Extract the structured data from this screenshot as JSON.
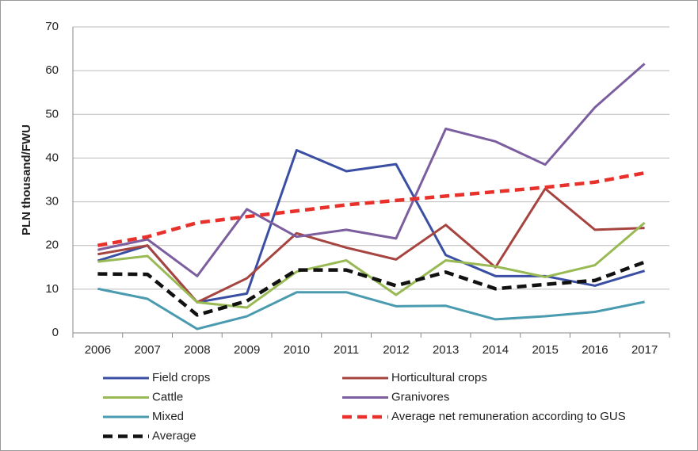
{
  "chart_data": {
    "type": "line",
    "y_label": "PLN thousand/FWU",
    "categories": [
      "2006",
      "2007",
      "2008",
      "2009",
      "2010",
      "2011",
      "2012",
      "2013",
      "2014",
      "2015",
      "2016",
      "2017"
    ],
    "ylim": [
      0,
      70
    ],
    "yticks": [
      0,
      10,
      20,
      30,
      40,
      50,
      60,
      70
    ],
    "grid": true,
    "series": [
      {
        "name": "Field crops",
        "color": "#3a4fa3",
        "dashed": false,
        "values": [
          16.5,
          20,
          7,
          9,
          41.8,
          37,
          38.6,
          17.8,
          13,
          13,
          10.8,
          14.2
        ]
      },
      {
        "name": "Horticultural crops",
        "color": "#a64440",
        "dashed": false,
        "values": [
          18,
          20,
          7,
          12.5,
          22.8,
          19.5,
          16.8,
          24.7,
          15,
          33,
          23.6,
          24
        ]
      },
      {
        "name": "Cattle",
        "color": "#98b954",
        "dashed": false,
        "values": [
          16.3,
          17.6,
          7,
          5.8,
          14,
          16.6,
          8.7,
          16.6,
          15.2,
          12.8,
          15.5,
          25.2
        ]
      },
      {
        "name": "Granivores",
        "color": "#7c5e9e",
        "dashed": false,
        "values": [
          19,
          21.4,
          13,
          28.3,
          22,
          23.6,
          21.6,
          46.7,
          43.8,
          38.5,
          51.6,
          61.6
        ]
      },
      {
        "name": "Mixed",
        "color": "#4a9bb0",
        "dashed": false,
        "values": [
          10.1,
          7.8,
          0.9,
          3.8,
          9.3,
          9.3,
          6.1,
          6.2,
          3.1,
          3.8,
          4.8,
          7.1
        ]
      },
      {
        "name": "Average net remuneration according to GUS",
        "color": "#e8312b",
        "dashed": true,
        "values": [
          20,
          22,
          25.2,
          26.6,
          27.9,
          29.3,
          30.3,
          31.3,
          32.3,
          33.3,
          34.5,
          36.6
        ]
      },
      {
        "name": "Average",
        "color": "#111111",
        "dashed": true,
        "values": [
          13.5,
          13.4,
          4.1,
          7.3,
          14.4,
          14.4,
          10.8,
          13.9,
          10.1,
          11.1,
          12,
          16.2
        ]
      }
    ]
  }
}
